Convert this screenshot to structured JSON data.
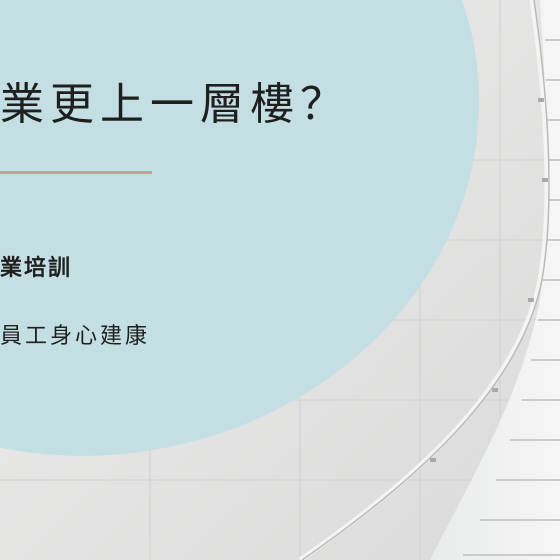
{
  "slide": {
    "headline": "業更上一層樓？",
    "subtitle": "業培訓",
    "tagline": "員工身心建康"
  },
  "colors": {
    "blob": "#c4dfe4",
    "divider": "#c79c92",
    "text": "#1f1f1f",
    "wall": "#e6e7e6"
  }
}
